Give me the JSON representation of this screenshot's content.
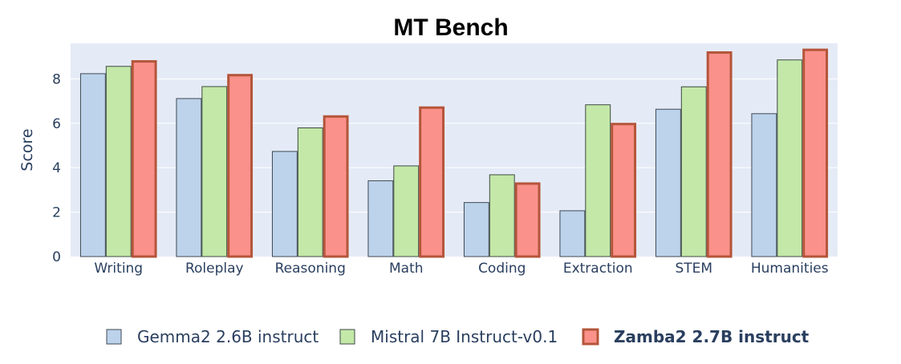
{
  "chart_data": {
    "type": "bar",
    "title": "MT Bench",
    "xlabel": "",
    "ylabel": "Score",
    "ylim": [
      0,
      9.6
    ],
    "yticks": [
      0,
      2,
      4,
      6,
      8
    ],
    "grid": true,
    "legend_position": "bottom",
    "categories": [
      "Writing",
      "Roleplay",
      "Reasoning",
      "Math",
      "Coding",
      "Extraction",
      "STEM",
      "Humanities"
    ],
    "series": [
      {
        "name": "Gemma2 2.6B instruct",
        "bold": false,
        "fill": "#bdd3eb",
        "stroke": "#3f4a55",
        "values": [
          8.25,
          7.13,
          4.75,
          3.43,
          2.45,
          2.08,
          6.65,
          6.45
        ]
      },
      {
        "name": "Mistral 7B Instruct-v0.1",
        "bold": false,
        "fill": "#c3e8a8",
        "stroke": "#3f4a45",
        "values": [
          8.58,
          7.67,
          5.81,
          4.1,
          3.7,
          6.85,
          7.66,
          8.87
        ]
      },
      {
        "name": "Zamba2 2.7B instruct",
        "bold": true,
        "fill": "#fa918a",
        "stroke": "#b4553a",
        "values": [
          8.84,
          8.22,
          6.36,
          6.76,
          3.34,
          6.02,
          9.24,
          9.36
        ]
      }
    ],
    "plot_background": "#e5ebf6",
    "text_color": "#2a3f5f"
  }
}
